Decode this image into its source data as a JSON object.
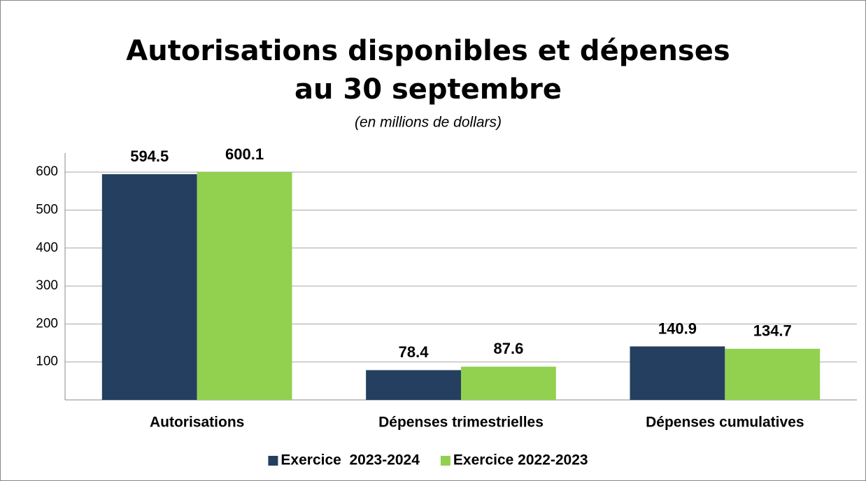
{
  "chart_data": {
    "type": "bar",
    "title": [
      "Autorisations disponibles et dépenses",
      "au 30 septembre"
    ],
    "subtitle": "(en millions de dollars)",
    "categories": [
      "Autorisations",
      "Dépenses trimestrielles",
      "Dépenses cumulatives"
    ],
    "series": [
      {
        "name": "Exercice  2023-2024",
        "color": "#243f60",
        "values": [
          594.5,
          78.4,
          140.9
        ]
      },
      {
        "name": "Exercice 2022-2023",
        "color": "#92d050",
        "values": [
          600.1,
          87.6,
          134.7
        ]
      }
    ],
    "ylim": [
      0,
      650
    ],
    "yticks": [
      100,
      200,
      300,
      400,
      500,
      600
    ],
    "grid": true,
    "legend": "bottom"
  }
}
